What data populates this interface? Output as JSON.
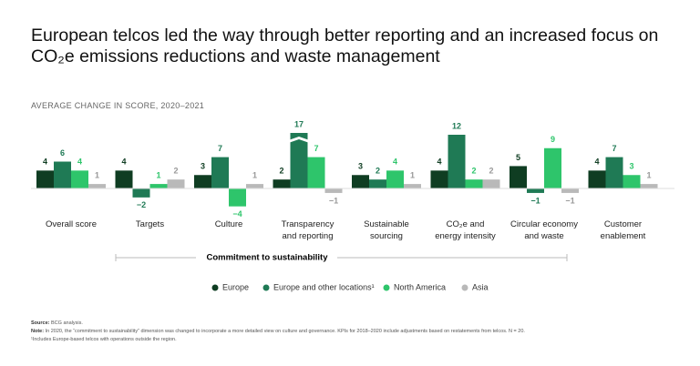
{
  "chart_data": {
    "type": "bar",
    "title": "European telcos led the way through better reporting and an increased focus on CO₂e emissions reductions and waste management",
    "subtitle": "AVERAGE CHANGE IN SCORE, 2020–2021",
    "categories": [
      "Overall score",
      "Targets",
      "Culture",
      "Transparency\nand reporting",
      "Sustainable\nsourcing",
      "CO₂e and\nenergy intensity",
      "Circular economy\nand waste",
      "Customer\nenablement"
    ],
    "series": [
      {
        "name": "Europe",
        "color": "#0f3d22",
        "values": [
          4,
          4,
          3,
          2,
          3,
          4,
          5,
          4
        ]
      },
      {
        "name": "Europe and other locations¹",
        "color": "#1f7a55",
        "values": [
          6,
          -2,
          7,
          17,
          2,
          12,
          -1,
          7
        ],
        "value_labels": [
          "6",
          "−2",
          "7",
          "17",
          "2",
          "12",
          "−1",
          "7"
        ]
      },
      {
        "name": "North America",
        "color": "#2ec56b",
        "values": [
          4,
          1,
          -4,
          7,
          4,
          2,
          9,
          3
        ],
        "value_labels": [
          "4",
          "1",
          "−4",
          "7",
          "4",
          "2",
          "9",
          "3"
        ]
      },
      {
        "name": "Asia",
        "color": "#b9b9b9",
        "values": [
          1,
          2,
          1,
          -1,
          1,
          2,
          -1,
          1
        ],
        "value_labels": [
          "1",
          "2",
          "1",
          "−1",
          "1",
          "2",
          "−1",
          "1"
        ]
      }
    ],
    "ylim": [
      -5,
      12
    ],
    "annotation": "Commitment to sustainability",
    "source_label": "Source:",
    "source": "BCG analysis.",
    "note_label": "Note:",
    "note": "In 2020, the “commitment to sustainability” dimension was changed to incorporate a more detailed view on culture and governance. KPIs for 2018–2020 include adjustments based on restatements from telcos. N = 20.",
    "footnote": "¹Includes Europe-based telcos with operations outside the region."
  }
}
